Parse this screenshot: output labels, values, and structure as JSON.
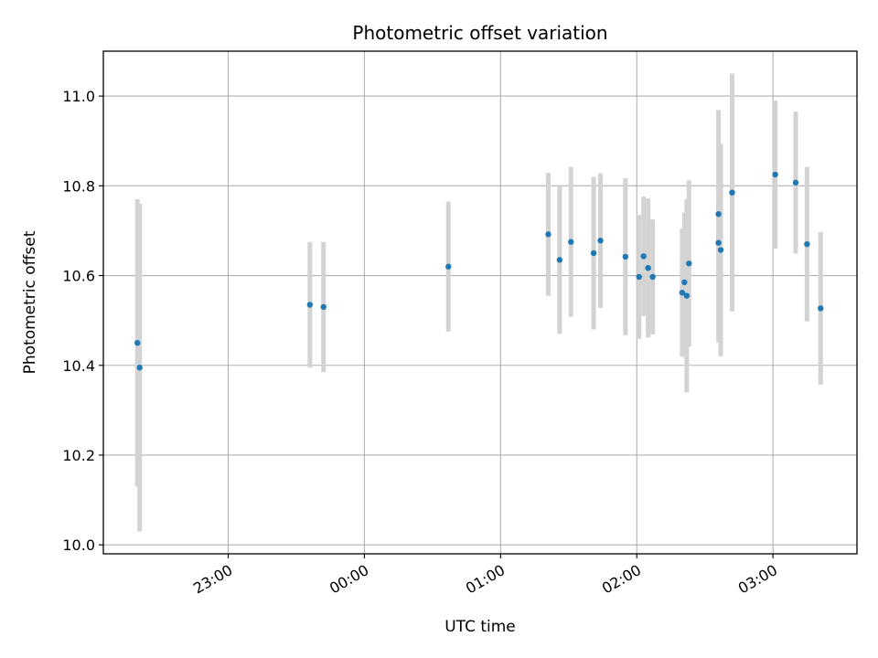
{
  "chart_data": {
    "type": "scatter",
    "title": "Photometric offset variation",
    "xlabel": "UTC time",
    "ylabel": "Photometric offset",
    "x_ticks": [
      "23:00",
      "00:00",
      "01:00",
      "02:00",
      "03:00"
    ],
    "y_ticks": [
      "10.0",
      "10.2",
      "10.4",
      "10.6",
      "10.8",
      "11.0"
    ],
    "xlim": [
      "22:05",
      "03:37"
    ],
    "ylim": [
      9.98,
      11.1
    ],
    "grid": true,
    "marker_color": "#1f77b4",
    "errorbar_color": "#d3d3d3",
    "points": [
      {
        "time": "22:20",
        "y": 10.45,
        "err": 0.32
      },
      {
        "time": "22:21",
        "y": 10.395,
        "err": 0.365
      },
      {
        "time": "23:36",
        "y": 10.535,
        "err": 0.14
      },
      {
        "time": "23:42",
        "y": 10.53,
        "err": 0.145
      },
      {
        "time": "00:37",
        "y": 10.62,
        "err": 0.145
      },
      {
        "time": "01:21",
        "y": 10.692,
        "err": 0.137
      },
      {
        "time": "01:26",
        "y": 10.635,
        "err": 0.165
      },
      {
        "time": "01:31",
        "y": 10.675,
        "err": 0.167
      },
      {
        "time": "01:41",
        "y": 10.65,
        "err": 0.17
      },
      {
        "time": "01:44",
        "y": 10.678,
        "err": 0.15
      },
      {
        "time": "01:55",
        "y": 10.642,
        "err": 0.175
      },
      {
        "time": "02:01",
        "y": 10.597,
        "err": 0.138
      },
      {
        "time": "02:03",
        "y": 10.643,
        "err": 0.133
      },
      {
        "time": "02:05",
        "y": 10.617,
        "err": 0.155
      },
      {
        "time": "02:07",
        "y": 10.597,
        "err": 0.128
      },
      {
        "time": "02:20",
        "y": 10.562,
        "err": 0.143
      },
      {
        "time": "02:21",
        "y": 10.585,
        "err": 0.155
      },
      {
        "time": "02:22",
        "y": 10.555,
        "err": 0.215
      },
      {
        "time": "02:23",
        "y": 10.627,
        "err": 0.185
      },
      {
        "time": "02:36",
        "y": 10.737,
        "err": 0.232
      },
      {
        "time": "02:36",
        "y": 10.673,
        "err": 0.222
      },
      {
        "time": "02:37",
        "y": 10.657,
        "err": 0.237
      },
      {
        "time": "02:42",
        "y": 10.785,
        "err": 0.265
      },
      {
        "time": "03:01",
        "y": 10.825,
        "err": 0.165
      },
      {
        "time": "03:10",
        "y": 10.807,
        "err": 0.158
      },
      {
        "time": "03:15",
        "y": 10.67,
        "err": 0.172
      },
      {
        "time": "03:21",
        "y": 10.527,
        "err": 0.17
      }
    ]
  }
}
